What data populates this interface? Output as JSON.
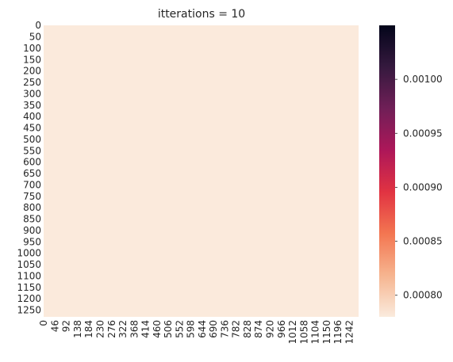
{
  "chart_data": {
    "type": "heatmap",
    "title": "itterations = 10",
    "xlabel": "",
    "ylabel": "",
    "x_tick_labels": [
      "0",
      "46",
      "92",
      "138",
      "184",
      "230",
      "276",
      "322",
      "368",
      "414",
      "460",
      "506",
      "552",
      "598",
      "644",
      "690",
      "736",
      "782",
      "828",
      "874",
      "920",
      "966",
      "1012",
      "1058",
      "1104",
      "1150",
      "1196",
      "1242"
    ],
    "y_tick_labels": [
      "0",
      "50",
      "100",
      "150",
      "200",
      "250",
      "300",
      "350",
      "400",
      "450",
      "500",
      "550",
      "600",
      "650",
      "700",
      "750",
      "800",
      "850",
      "900",
      "950",
      "1000",
      "1050",
      "1100",
      "1150",
      "1200",
      "1250"
    ],
    "x_range": [
      0,
      1280
    ],
    "y_range": [
      0,
      1280
    ],
    "x_tick_step": 46,
    "y_tick_step": 50,
    "cell_value": 0.00078,
    "fill_color": "#fbeadc",
    "colorbar": {
      "ticks": [
        "0.00080",
        "0.00085",
        "0.00090",
        "0.00095",
        "0.00100"
      ],
      "tick_values": [
        0.0008,
        0.00085,
        0.0009,
        0.00095,
        0.001
      ],
      "range": [
        0.00078,
        0.00105
      ],
      "colormap": "rocket_r",
      "colormap_stops": [
        "#faebdd",
        "#f6b48f",
        "#f37651",
        "#e13342",
        "#ad1759",
        "#701f57",
        "#35193e",
        "#03051a"
      ]
    }
  }
}
